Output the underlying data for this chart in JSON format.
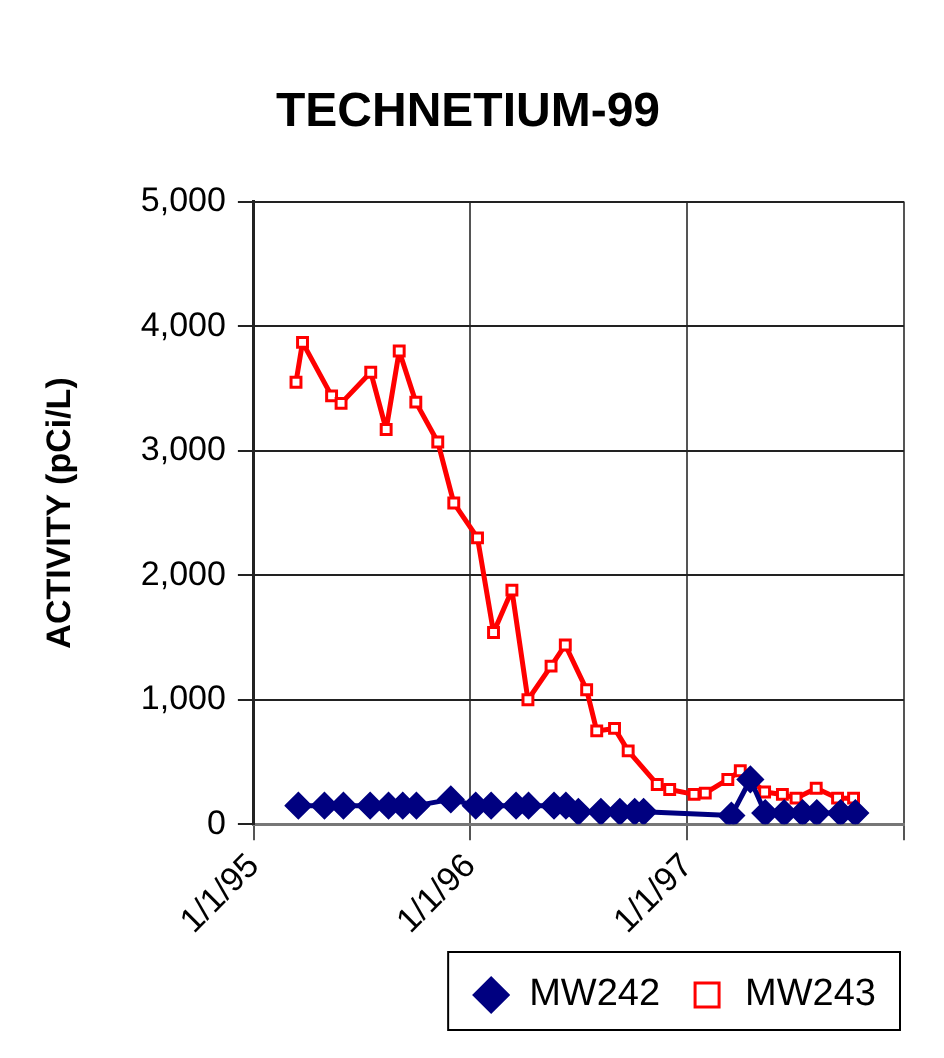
{
  "chart_data": {
    "type": "line",
    "title": "TECHNETIUM-99",
    "ylabel": "ACTIVITY (pCi/L)",
    "xlim": [
      "1995-01-01",
      "1998-01-01"
    ],
    "xticks": [
      {
        "value": "1995-01-01",
        "label": "1/1/95"
      },
      {
        "value": "1996-01-01",
        "label": "1/1/96"
      },
      {
        "value": "1997-01-01",
        "label": "1/1/97"
      },
      {
        "value": "1998-01-01",
        "label": null
      }
    ],
    "ylim": [
      0,
      5000
    ],
    "yticks": [
      0,
      {
        "value": 1000,
        "label": "1,000"
      },
      {
        "value": 2000,
        "label": "2,000"
      },
      {
        "value": 3000,
        "label": "3,000"
      },
      {
        "value": 4000,
        "label": "4,000"
      },
      {
        "value": 5000,
        "label": "5,000"
      }
    ],
    "grid": true,
    "legend": "bottom right",
    "series": [
      {
        "name": "MW242",
        "color": "#000080",
        "marker": "diamond",
        "x": [
          "1995-03-17",
          "1995-04-30",
          "1995-06-01",
          "1995-07-16",
          "1995-08-16",
          "1995-09-09",
          "1995-10-02",
          "1995-11-29",
          "1996-01-10",
          "1996-02-05",
          "1996-03-18",
          "1996-04-08",
          "1996-05-21",
          "1996-06-10",
          "1996-07-01",
          "1996-08-08",
          "1996-09-09",
          "1996-10-04",
          "1996-10-19",
          "1997-03-16",
          "1997-04-17",
          "1997-05-12",
          "1997-06-13",
          "1997-07-14",
          "1997-08-07",
          "1997-09-16",
          "1997-10-11"
        ],
        "values": [
          150,
          150,
          150,
          150,
          150,
          150,
          150,
          200,
          150,
          150,
          150,
          150,
          150,
          150,
          100,
          100,
          100,
          100,
          100,
          70,
          360,
          90,
          90,
          90,
          90,
          90,
          90
        ]
      },
      {
        "name": "MW243",
        "color": "#ff0000",
        "marker": "square",
        "x": [
          "1995-03-13",
          "1995-03-24",
          "1995-05-12",
          "1995-05-28",
          "1995-07-17",
          "1995-08-12",
          "1995-09-03",
          "1995-10-01",
          "1995-11-07",
          "1995-12-04",
          "1996-01-13",
          "1996-02-09",
          "1996-03-11",
          "1996-04-07",
          "1996-05-16",
          "1996-06-09",
          "1996-07-15",
          "1996-08-01",
          "1996-08-31",
          "1996-09-23",
          "1996-11-11",
          "1996-12-02",
          "1997-01-12",
          "1997-01-31",
          "1997-03-10",
          "1997-03-31",
          "1997-05-11",
          "1997-06-10",
          "1997-07-03",
          "1997-08-06",
          "1997-09-11",
          "1997-10-08"
        ],
        "values": [
          3550,
          3870,
          3440,
          3380,
          3630,
          3170,
          3800,
          3390,
          3070,
          2580,
          2300,
          1540,
          1880,
          1000,
          1270,
          1440,
          1080,
          750,
          770,
          590,
          320,
          280,
          240,
          250,
          360,
          430,
          260,
          240,
          210,
          290,
          210,
          210
        ]
      }
    ]
  }
}
